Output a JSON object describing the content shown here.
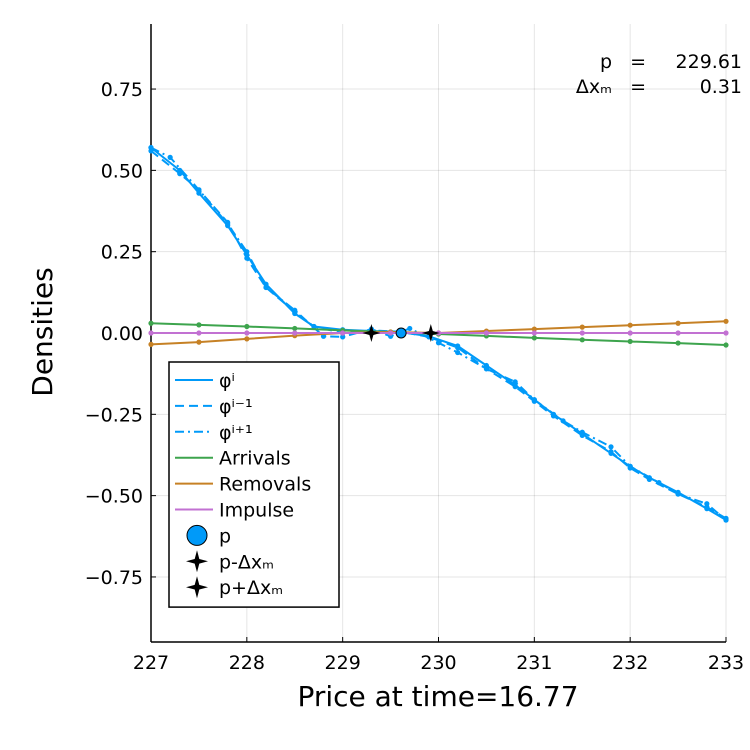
{
  "chart_data": {
    "type": "line",
    "title": "",
    "xlabel": "Price at time=16.77",
    "ylabel": "Densities",
    "xlim": [
      227,
      233
    ],
    "ylim": [
      -0.95,
      0.95
    ],
    "xticks": [
      227,
      228,
      229,
      230,
      231,
      232,
      233
    ],
    "yticks": [
      -0.75,
      -0.5,
      -0.25,
      0.0,
      0.25,
      0.5,
      0.75
    ],
    "xtick_labels": [
      "227",
      "228",
      "229",
      "230",
      "231",
      "232",
      "233"
    ],
    "ytick_labels": [
      "−0.75",
      "−0.50",
      "−0.25",
      "0.00",
      "0.25",
      "0.50",
      "0.75"
    ],
    "grid": true,
    "legend_position": "bottom-left",
    "annotations": [
      {
        "label": "p",
        "eq": "=",
        "value": "229.61"
      },
      {
        "label": "Δxₘ",
        "eq": "=",
        "value": "0.31"
      }
    ],
    "series": [
      {
        "name": "φⁱ",
        "color": "#009af9",
        "style": "solid",
        "x": [
          227.0,
          227.3,
          227.5,
          227.8,
          228.0,
          228.2,
          228.5,
          228.7,
          229.0,
          229.3,
          229.6,
          229.9,
          230.2,
          230.5,
          230.8,
          231.0,
          231.2,
          231.5,
          231.8,
          232.0,
          232.2,
          232.5,
          232.8,
          233.0
        ],
        "y": [
          0.57,
          0.5,
          0.43,
          0.33,
          0.24,
          0.15,
          0.06,
          0.02,
          0.01,
          0.006,
          0.003,
          -0.01,
          -0.04,
          -0.1,
          -0.16,
          -0.205,
          -0.25,
          -0.31,
          -0.37,
          -0.41,
          -0.445,
          -0.49,
          -0.54,
          -0.575
        ]
      },
      {
        "name": "φⁱ⁻¹",
        "color": "#009af9",
        "style": "dash",
        "x": [
          227.0,
          227.3,
          227.5,
          227.8,
          228.0,
          228.2,
          228.5,
          228.7,
          229.0,
          229.3,
          229.6,
          229.9,
          230.2,
          230.5,
          230.8,
          231.0,
          231.2,
          231.5,
          231.8,
          232.0,
          232.2,
          232.5,
          232.8,
          233.0
        ],
        "y": [
          0.56,
          0.49,
          0.44,
          0.34,
          0.23,
          0.14,
          0.065,
          0.02,
          0.0,
          0.008,
          0.004,
          -0.012,
          -0.045,
          -0.11,
          -0.165,
          -0.21,
          -0.255,
          -0.315,
          -0.365,
          -0.415,
          -0.45,
          -0.495,
          -0.535,
          -0.57
        ]
      },
      {
        "name": "φⁱ⁺¹",
        "color": "#009af9",
        "style": "dashdot",
        "x": [
          227.0,
          227.2,
          227.5,
          227.8,
          228.0,
          228.2,
          228.5,
          228.8,
          229.0,
          229.3,
          229.5,
          229.7,
          230.0,
          230.2,
          230.5,
          230.8,
          231.0,
          231.3,
          231.5,
          231.8,
          232.0,
          232.3,
          232.5,
          232.8,
          233.0
        ],
        "y": [
          0.57,
          0.54,
          0.44,
          0.335,
          0.25,
          0.14,
          0.07,
          -0.01,
          -0.012,
          0.012,
          -0.01,
          0.014,
          -0.03,
          -0.06,
          -0.11,
          -0.15,
          -0.205,
          -0.27,
          -0.305,
          -0.35,
          -0.41,
          -0.46,
          -0.495,
          -0.525,
          -0.575
        ]
      },
      {
        "name": "Arrivals",
        "color": "#3da44d",
        "style": "solid",
        "x": [
          227.0,
          227.5,
          228.0,
          228.5,
          229.0,
          229.5,
          230.0,
          230.5,
          231.0,
          231.5,
          232.0,
          232.5,
          233.0
        ],
        "y": [
          0.03,
          0.025,
          0.02,
          0.014,
          0.008,
          0.003,
          -0.003,
          -0.009,
          -0.015,
          -0.021,
          -0.026,
          -0.031,
          -0.037
        ]
      },
      {
        "name": "Removals",
        "color": "#c68125",
        "style": "solid",
        "x": [
          227.0,
          227.5,
          228.0,
          228.5,
          229.0,
          229.5,
          230.0,
          230.5,
          231.0,
          231.5,
          232.0,
          232.5,
          233.0
        ],
        "y": [
          -0.035,
          -0.028,
          -0.018,
          -0.008,
          0.0,
          0.003,
          0.0,
          0.006,
          0.012,
          0.018,
          0.024,
          0.03,
          0.036
        ]
      },
      {
        "name": "Impulse",
        "color": "#c271d2",
        "style": "solid",
        "x": [
          227.0,
          227.5,
          228.0,
          228.5,
          229.0,
          229.5,
          230.0,
          230.5,
          231.0,
          231.5,
          232.0,
          232.5,
          233.0
        ],
        "y": [
          0.0,
          0.0,
          0.0,
          0.0,
          0.0,
          0.0,
          0.0,
          0.0,
          0.0,
          0.0,
          0.0,
          0.0,
          0.0
        ]
      }
    ],
    "markers": [
      {
        "name": "p",
        "shape": "circle",
        "color": "#009af9",
        "x": 229.61,
        "y": 0.0
      },
      {
        "name": "p-Δxₘ",
        "shape": "star4",
        "color": "#000000",
        "x": 229.3,
        "y": 0.0
      },
      {
        "name": "p+Δxₘ",
        "shape": "star4",
        "color": "#000000",
        "x": 229.92,
        "y": 0.0
      }
    ]
  }
}
